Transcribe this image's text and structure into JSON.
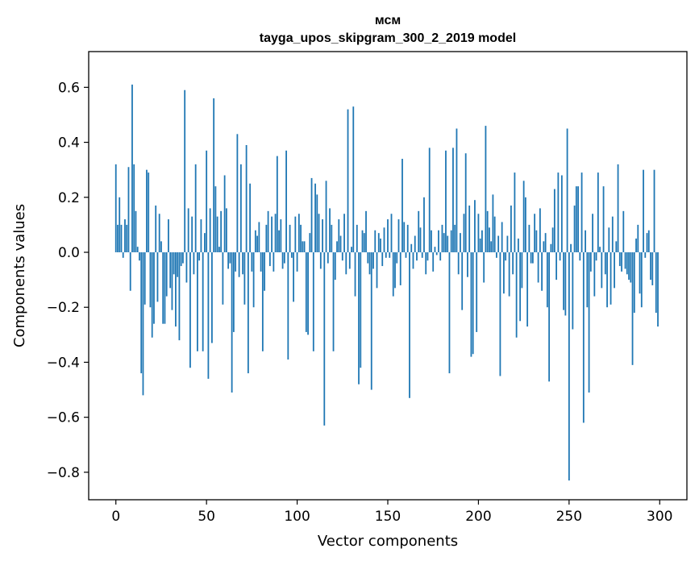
{
  "chart_data": {
    "type": "bar",
    "title_line1": "мсм",
    "title_line2": "tayga_upos_skipgram_300_2_2019 model",
    "xlabel": "Vector components",
    "ylabel": "Components values",
    "xlim": [
      -15,
      315
    ],
    "ylim": [
      -0.9,
      0.73
    ],
    "xticks": [
      0,
      50,
      100,
      150,
      200,
      250,
      300
    ],
    "yticks": [
      0.6,
      0.4,
      0.2,
      0.0,
      -0.2,
      -0.4,
      -0.6,
      -0.8
    ],
    "ytick_labels": [
      "0.6",
      "0.4",
      "0.2",
      "0.0",
      "−0.2",
      "−0.4",
      "−0.6",
      "−0.8"
    ],
    "bar_color": "#1f77b4",
    "values": [
      0.32,
      0.1,
      0.2,
      0.1,
      -0.02,
      0.12,
      0.1,
      0.31,
      -0.14,
      0.61,
      0.32,
      0.15,
      0.02,
      -0.03,
      -0.44,
      -0.52,
      -0.19,
      0.3,
      0.29,
      -0.2,
      -0.31,
      -0.26,
      0.17,
      -0.18,
      0.14,
      0.04,
      -0.26,
      -0.26,
      -0.16,
      0.12,
      -0.13,
      -0.21,
      -0.08,
      -0.27,
      -0.09,
      -0.32,
      -0.05,
      -0.04,
      0.59,
      -0.11,
      0.16,
      -0.42,
      0.13,
      -0.08,
      0.32,
      -0.36,
      -0.03,
      0.12,
      -0.36,
      0.07,
      0.37,
      -0.46,
      0.16,
      -0.33,
      0.56,
      0.24,
      0.13,
      0.02,
      0.15,
      -0.19,
      0.28,
      0.16,
      -0.06,
      -0.04,
      -0.51,
      -0.29,
      -0.07,
      0.43,
      -0.09,
      0.32,
      -0.08,
      -0.19,
      0.39,
      -0.44,
      0.25,
      -0.07,
      -0.2,
      0.08,
      0.06,
      0.11,
      -0.07,
      -0.36,
      -0.14,
      0.1,
      0.15,
      -0.05,
      0.13,
      -0.07,
      0.14,
      0.35,
      0.08,
      0.12,
      -0.06,
      -0.04,
      0.37,
      -0.39,
      0.1,
      -0.02,
      -0.18,
      0.13,
      -0.07,
      0.14,
      0.1,
      0.04,
      0.04,
      -0.29,
      -0.3,
      0.07,
      0.27,
      -0.36,
      0.25,
      0.21,
      0.14,
      -0.06,
      0.12,
      -0.63,
      0.26,
      -0.04,
      0.16,
      0.1,
      -0.36,
      -0.1,
      0.04,
      0.12,
      0.06,
      -0.03,
      0.14,
      -0.08,
      0.52,
      -0.06,
      0.02,
      0.53,
      -0.16,
      0.1,
      -0.48,
      -0.42,
      0.08,
      0.07,
      0.15,
      -0.04,
      -0.08,
      -0.5,
      -0.06,
      0.08,
      -0.13,
      0.07,
      0.05,
      -0.05,
      0.09,
      -0.02,
      0.12,
      -0.02,
      0.14,
      -0.16,
      -0.13,
      -0.04,
      0.12,
      -0.12,
      0.34,
      0.11,
      -0.02,
      0.1,
      -0.53,
      0.03,
      -0.06,
      0.06,
      -0.03,
      0.15,
      0.09,
      -0.02,
      0.2,
      -0.08,
      -0.03,
      0.38,
      0.08,
      -0.07,
      0.02,
      -0.01,
      0.08,
      -0.03,
      0.1,
      0.07,
      0.37,
      0.06,
      -0.44,
      0.08,
      0.38,
      0.1,
      0.45,
      -0.08,
      0.07,
      -0.21,
      0.14,
      0.36,
      -0.09,
      0.17,
      -0.38,
      -0.37,
      0.19,
      -0.29,
      0.14,
      0.05,
      0.08,
      -0.11,
      0.46,
      0.15,
      0.09,
      0.04,
      0.21,
      0.13,
      -0.02,
      0.06,
      -0.45,
      0.11,
      -0.15,
      -0.03,
      0.06,
      -0.16,
      0.17,
      -0.08,
      0.29,
      -0.31,
      0.05,
      -0.25,
      -0.13,
      0.26,
      0.2,
      -0.27,
      0.1,
      -0.04,
      -0.04,
      0.14,
      0.08,
      -0.11,
      0.16,
      -0.14,
      0.04,
      0.07,
      -0.2,
      -0.47,
      0.03,
      0.09,
      0.23,
      -0.1,
      0.29,
      -0.03,
      0.28,
      -0.21,
      -0.23,
      0.45,
      -0.83,
      0.03,
      -0.28,
      0.17,
      0.24,
      0.24,
      -0.03,
      0.29,
      -0.62,
      0.08,
      -0.2,
      -0.51,
      -0.07,
      0.14,
      -0.16,
      -0.03,
      0.29,
      0.02,
      -0.13,
      0.24,
      -0.08,
      -0.2,
      0.09,
      -0.19,
      0.13,
      -0.13,
      0.04,
      0.32,
      -0.05,
      -0.07,
      0.15,
      -0.06,
      -0.08,
      -0.1,
      -0.11,
      -0.41,
      -0.22,
      0.05,
      0.1,
      -0.15,
      -0.2,
      0.3,
      -0.02,
      0.07,
      0.08,
      -0.1,
      -0.12,
      0.3,
      -0.22,
      -0.27
    ]
  }
}
